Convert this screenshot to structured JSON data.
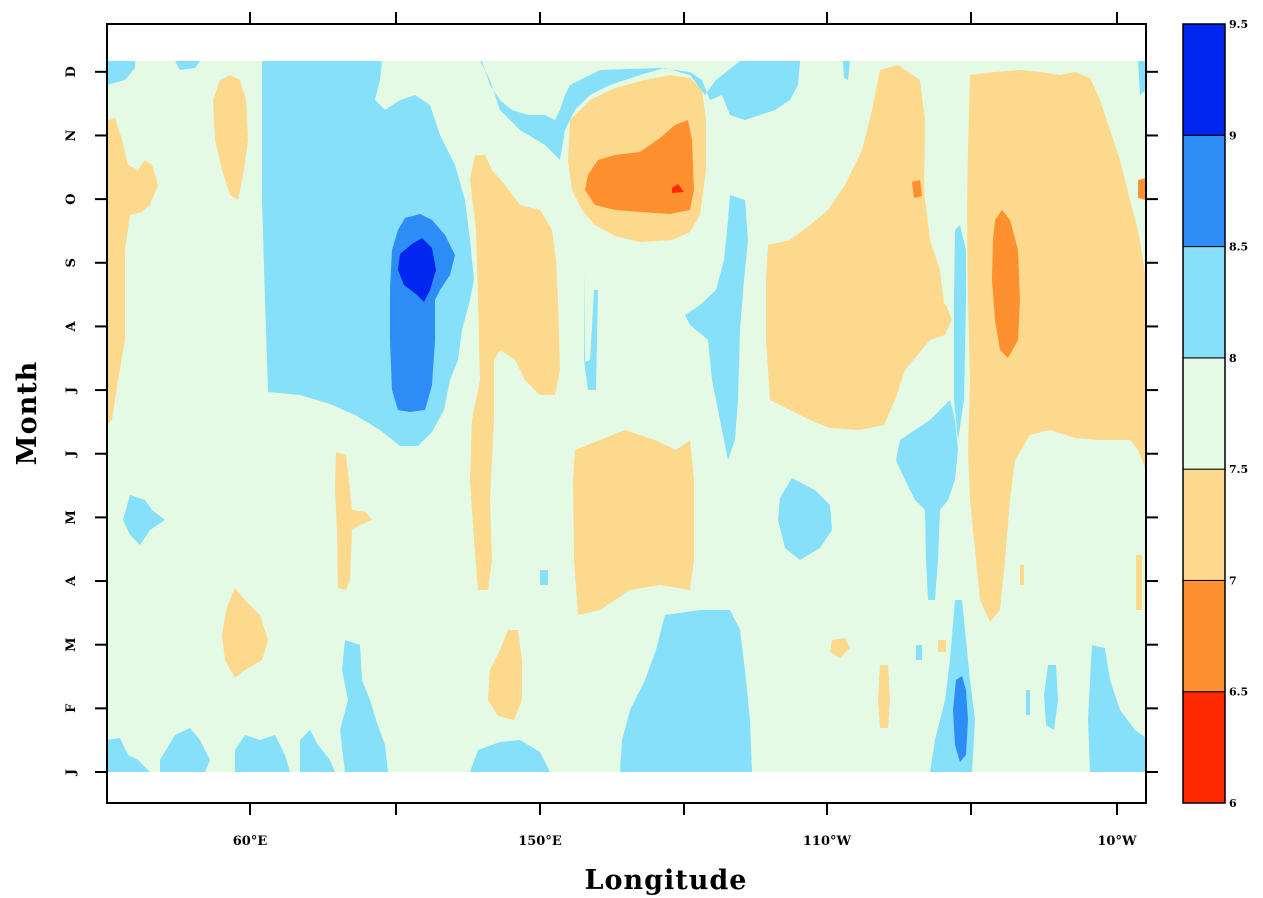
{
  "chart_data": {
    "type": "heatmap",
    "title": "",
    "xlabel": "Longitude",
    "ylabel": "Month",
    "x_tick_labels": [
      "60°E",
      "150°E",
      "110°W",
      "10°W"
    ],
    "y_tick_labels": [
      "J",
      "F",
      "M",
      "A",
      "M",
      "J",
      "J",
      "A",
      "S",
      "O",
      "N",
      "D"
    ],
    "colorbar": {
      "levels": [
        6,
        6.5,
        7,
        7.5,
        8,
        8.5,
        9,
        9.5
      ],
      "level_labels": [
        "6",
        "6.5",
        "7",
        "7.5",
        "8",
        "8.5",
        "9",
        "9.5"
      ],
      "colors": [
        "#ff2a00",
        "#ff9030",
        "#fcd98c",
        "#e4fae4",
        "#87e0fa",
        "#2d8cf5",
        "#0026f0"
      ]
    },
    "background_color": "#e4fae4",
    "features": [
      {
        "level_index": 3,
        "description": "background 7.5-8"
      },
      {
        "level_index": 4,
        "lon_range_deg": [
          75,
          140
        ],
        "month_range": [
          5.2,
          12
        ],
        "value_range": [
          8,
          8.5
        ]
      },
      {
        "level_index": 5,
        "lon_range_deg": [
          116,
          124
        ],
        "month_range": [
          5.8,
          8.5
        ],
        "value_range": [
          8.5,
          9
        ]
      },
      {
        "level_index": 6,
        "lon_range_deg": [
          117,
          121
        ],
        "month_range": [
          7.8,
          8.4
        ],
        "value_range": [
          9,
          9.5
        ]
      },
      {
        "level_index": 1,
        "lon_range_deg": [
          166,
          196
        ],
        "month_range": [
          9.5,
          10.5
        ],
        "value_range": [
          6.5,
          7
        ]
      },
      {
        "level_index": 1,
        "lon_range_deg": [
          307,
          312
        ],
        "month_range": [
          6.8,
          8.8
        ],
        "value_range": [
          6.5,
          7
        ]
      },
      {
        "level_index": 2,
        "lon_range_deg": [
          238,
          277
        ],
        "month_range": [
          4.9,
          9.3
        ],
        "value_range": [
          7,
          7.5
        ]
      },
      {
        "level_index": 5,
        "lon_range_deg": [
          290,
          293
        ],
        "month_range": [
          0.5,
          1.4
        ],
        "value_range": [
          8.5,
          9
        ]
      }
    ]
  }
}
